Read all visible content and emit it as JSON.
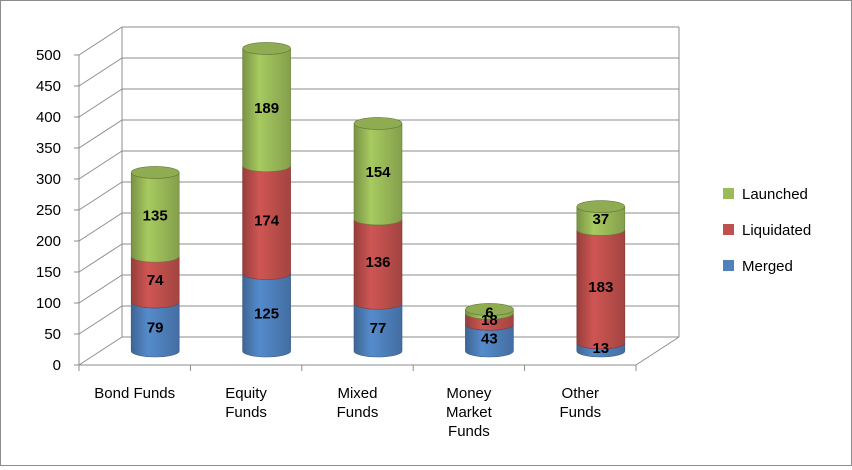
{
  "chart_data": {
    "type": "bar",
    "stacked": true,
    "three_d": true,
    "bar_shape": "cylinder",
    "categories": [
      [
        "Bond Funds"
      ],
      [
        "Equity",
        "Funds"
      ],
      [
        "Mixed",
        "Funds"
      ],
      [
        "Money",
        "Market",
        "Funds"
      ],
      [
        "Other",
        "Funds"
      ]
    ],
    "series": [
      {
        "name": "Merged",
        "color": "#4f81bd",
        "values": [
          79,
          125,
          77,
          43,
          13
        ]
      },
      {
        "name": "Liquidated",
        "color": "#c0504d",
        "values": [
          74,
          174,
          136,
          18,
          183
        ]
      },
      {
        "name": "Launched",
        "color": "#9bbb59",
        "values": [
          135,
          189,
          154,
          6,
          37
        ]
      }
    ],
    "ylim": [
      0,
      500
    ],
    "yticks": [
      0,
      50,
      100,
      150,
      200,
      250,
      300,
      350,
      400,
      450,
      500
    ],
    "data_labels": true,
    "grid": true,
    "legend": "right"
  }
}
